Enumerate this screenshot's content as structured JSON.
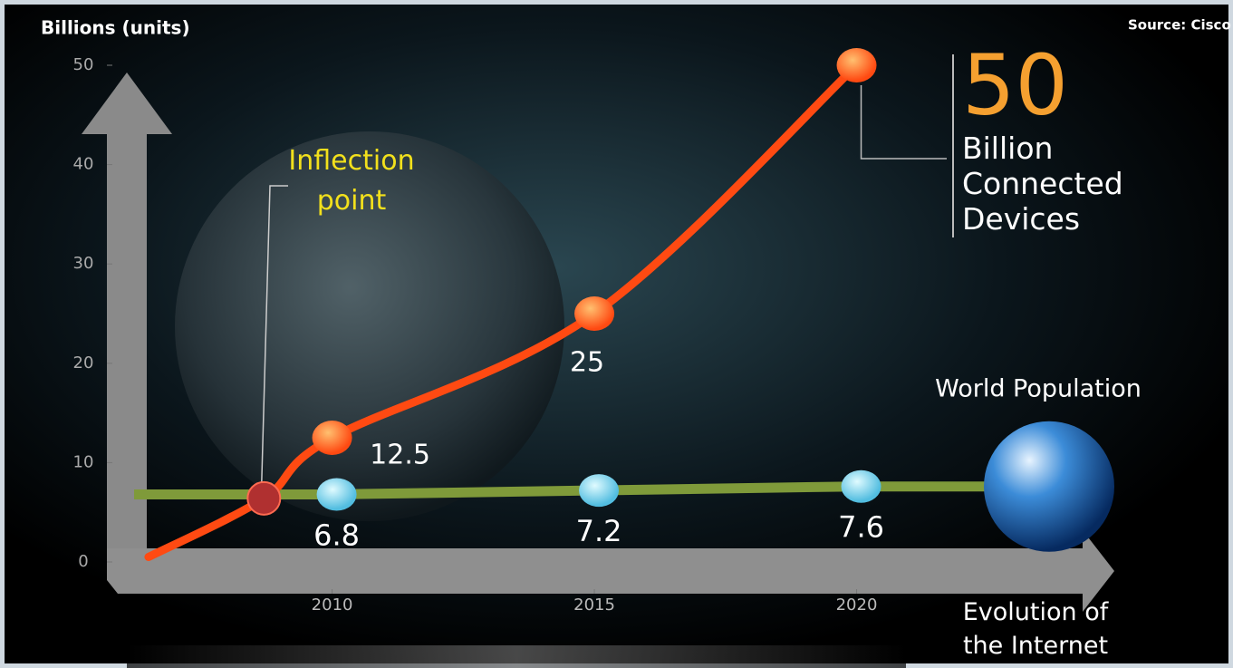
{
  "chart_data": {
    "type": "line",
    "y_label": "Billions (units)",
    "x_label": "Evolution of the Internet",
    "source": "Source: Cisco",
    "xlim": [
      2006,
      2025
    ],
    "xticks": [
      2010,
      2015,
      2020
    ],
    "ylim": [
      0,
      50
    ],
    "yticks": [
      0,
      10,
      20,
      30,
      40,
      50
    ],
    "series": [
      {
        "color": "#ff4a12",
        "x": [
          2006.5,
          2008.7,
          2010,
          2015,
          2020
        ],
        "values": [
          0.5,
          6.4,
          12.5,
          25,
          50
        ],
        "value_labels": [
          null,
          null,
          "12.5",
          "25",
          "50"
        ]
      },
      {
        "name": "World Population",
        "color": "#7f9a3a",
        "x": [
          2010,
          2015,
          2020
        ],
        "values": [
          6.8,
          7.2,
          7.6
        ],
        "value_labels": [
          "6.8",
          "7.2",
          "7.6"
        ]
      }
    ],
    "annotations": [
      {
        "text": "Inflection point",
        "x": 2008.7,
        "y": 6.4
      },
      {
        "text": "Billion Connected Devices",
        "x": 2020,
        "y": 50
      }
    ]
  }
}
